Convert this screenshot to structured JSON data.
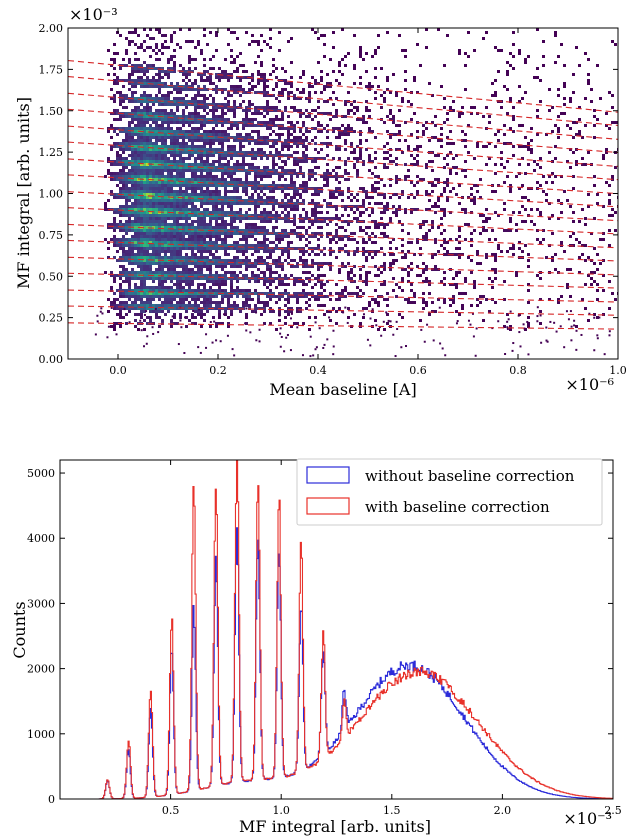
{
  "chart_data": [
    {
      "type": "heatmap",
      "xlabel": "Mean baseline [A]",
      "ylabel": "MF integral [arb. units]",
      "x_scale_label": "×10⁻⁶",
      "y_scale_label": "×10⁻³",
      "xlim": [
        -0.1,
        1.0
      ],
      "ylim": [
        0.0,
        2.0
      ],
      "xticks": [
        0.0,
        0.2,
        0.4,
        0.6,
        0.8,
        1.0
      ],
      "xtick_labels": [
        "0.0",
        "0.2",
        "0.4",
        "0.6",
        "0.8",
        "1.0"
      ],
      "yticks": [
        0.0,
        0.25,
        0.5,
        0.75,
        1.0,
        1.25,
        1.5,
        1.75,
        2.0
      ],
      "ytick_labels": [
        "0.00",
        "0.25",
        "0.50",
        "0.75",
        "1.00",
        "1.25",
        "1.50",
        "1.75",
        "2.00"
      ],
      "colormap": "viridis",
      "fit_line_color": "#d62728",
      "fit_lines": {
        "n_photoelectrons": [
          2,
          3,
          4,
          5,
          6,
          7,
          8,
          9,
          10,
          11,
          12,
          13,
          14,
          15,
          16,
          17,
          18
        ],
        "intercept_at_x0": [
          0.215,
          0.315,
          0.41,
          0.51,
          0.605,
          0.705,
          0.8,
          0.9,
          0.995,
          1.095,
          1.19,
          1.29,
          1.385,
          1.485,
          1.58,
          1.68,
          1.775
        ],
        "relative_slope_per_uA": -0.16
      }
    },
    {
      "type": "line",
      "step": true,
      "xlabel": "MF integral [arb. units]",
      "ylabel": "Counts",
      "x_scale_label": "×10⁻³",
      "xlim": [
        0.0,
        2.5
      ],
      "ylim": [
        0,
        5200
      ],
      "xticks": [
        0.5,
        1.0,
        1.5,
        2.0,
        2.5
      ],
      "xtick_labels": [
        "0.5",
        "1.0",
        "1.5",
        "2.0",
        "2.5"
      ],
      "yticks": [
        0,
        1000,
        2000,
        3000,
        4000,
        5000
      ],
      "ytick_labels": [
        "0",
        "1000",
        "2000",
        "3000",
        "4000",
        "5000"
      ],
      "legend_position": "top-right",
      "series": [
        {
          "name": "without baseline correction",
          "color": "#2b2bd9",
          "peaks": {
            "x": [
              0.215,
              0.31,
              0.41,
              0.505,
              0.605,
              0.705,
              0.8,
              0.895,
              0.99,
              1.09,
              1.19,
              1.285
            ],
            "height": [
              280,
              750,
              1350,
              2250,
              2780,
              3550,
              3920,
              3800,
              3550,
              2570,
              1630,
              620
            ]
          },
          "broad_component": {
            "center": 1.58,
            "height": 2050,
            "sigma": 0.25
          }
        },
        {
          "name": "with baseline correction",
          "color": "#e8312a",
          "peaks": {
            "x": [
              0.215,
              0.31,
              0.41,
              0.505,
              0.605,
              0.705,
              0.8,
              0.895,
              0.99,
              1.09,
              1.19,
              1.285
            ],
            "height": [
              300,
              900,
              1700,
              2750,
              4650,
              4660,
              5020,
              4570,
              4320,
              3480,
              1920,
              560
            ]
          },
          "broad_component": {
            "center": 1.62,
            "height": 1950,
            "sigma": 0.27
          }
        }
      ]
    }
  ]
}
